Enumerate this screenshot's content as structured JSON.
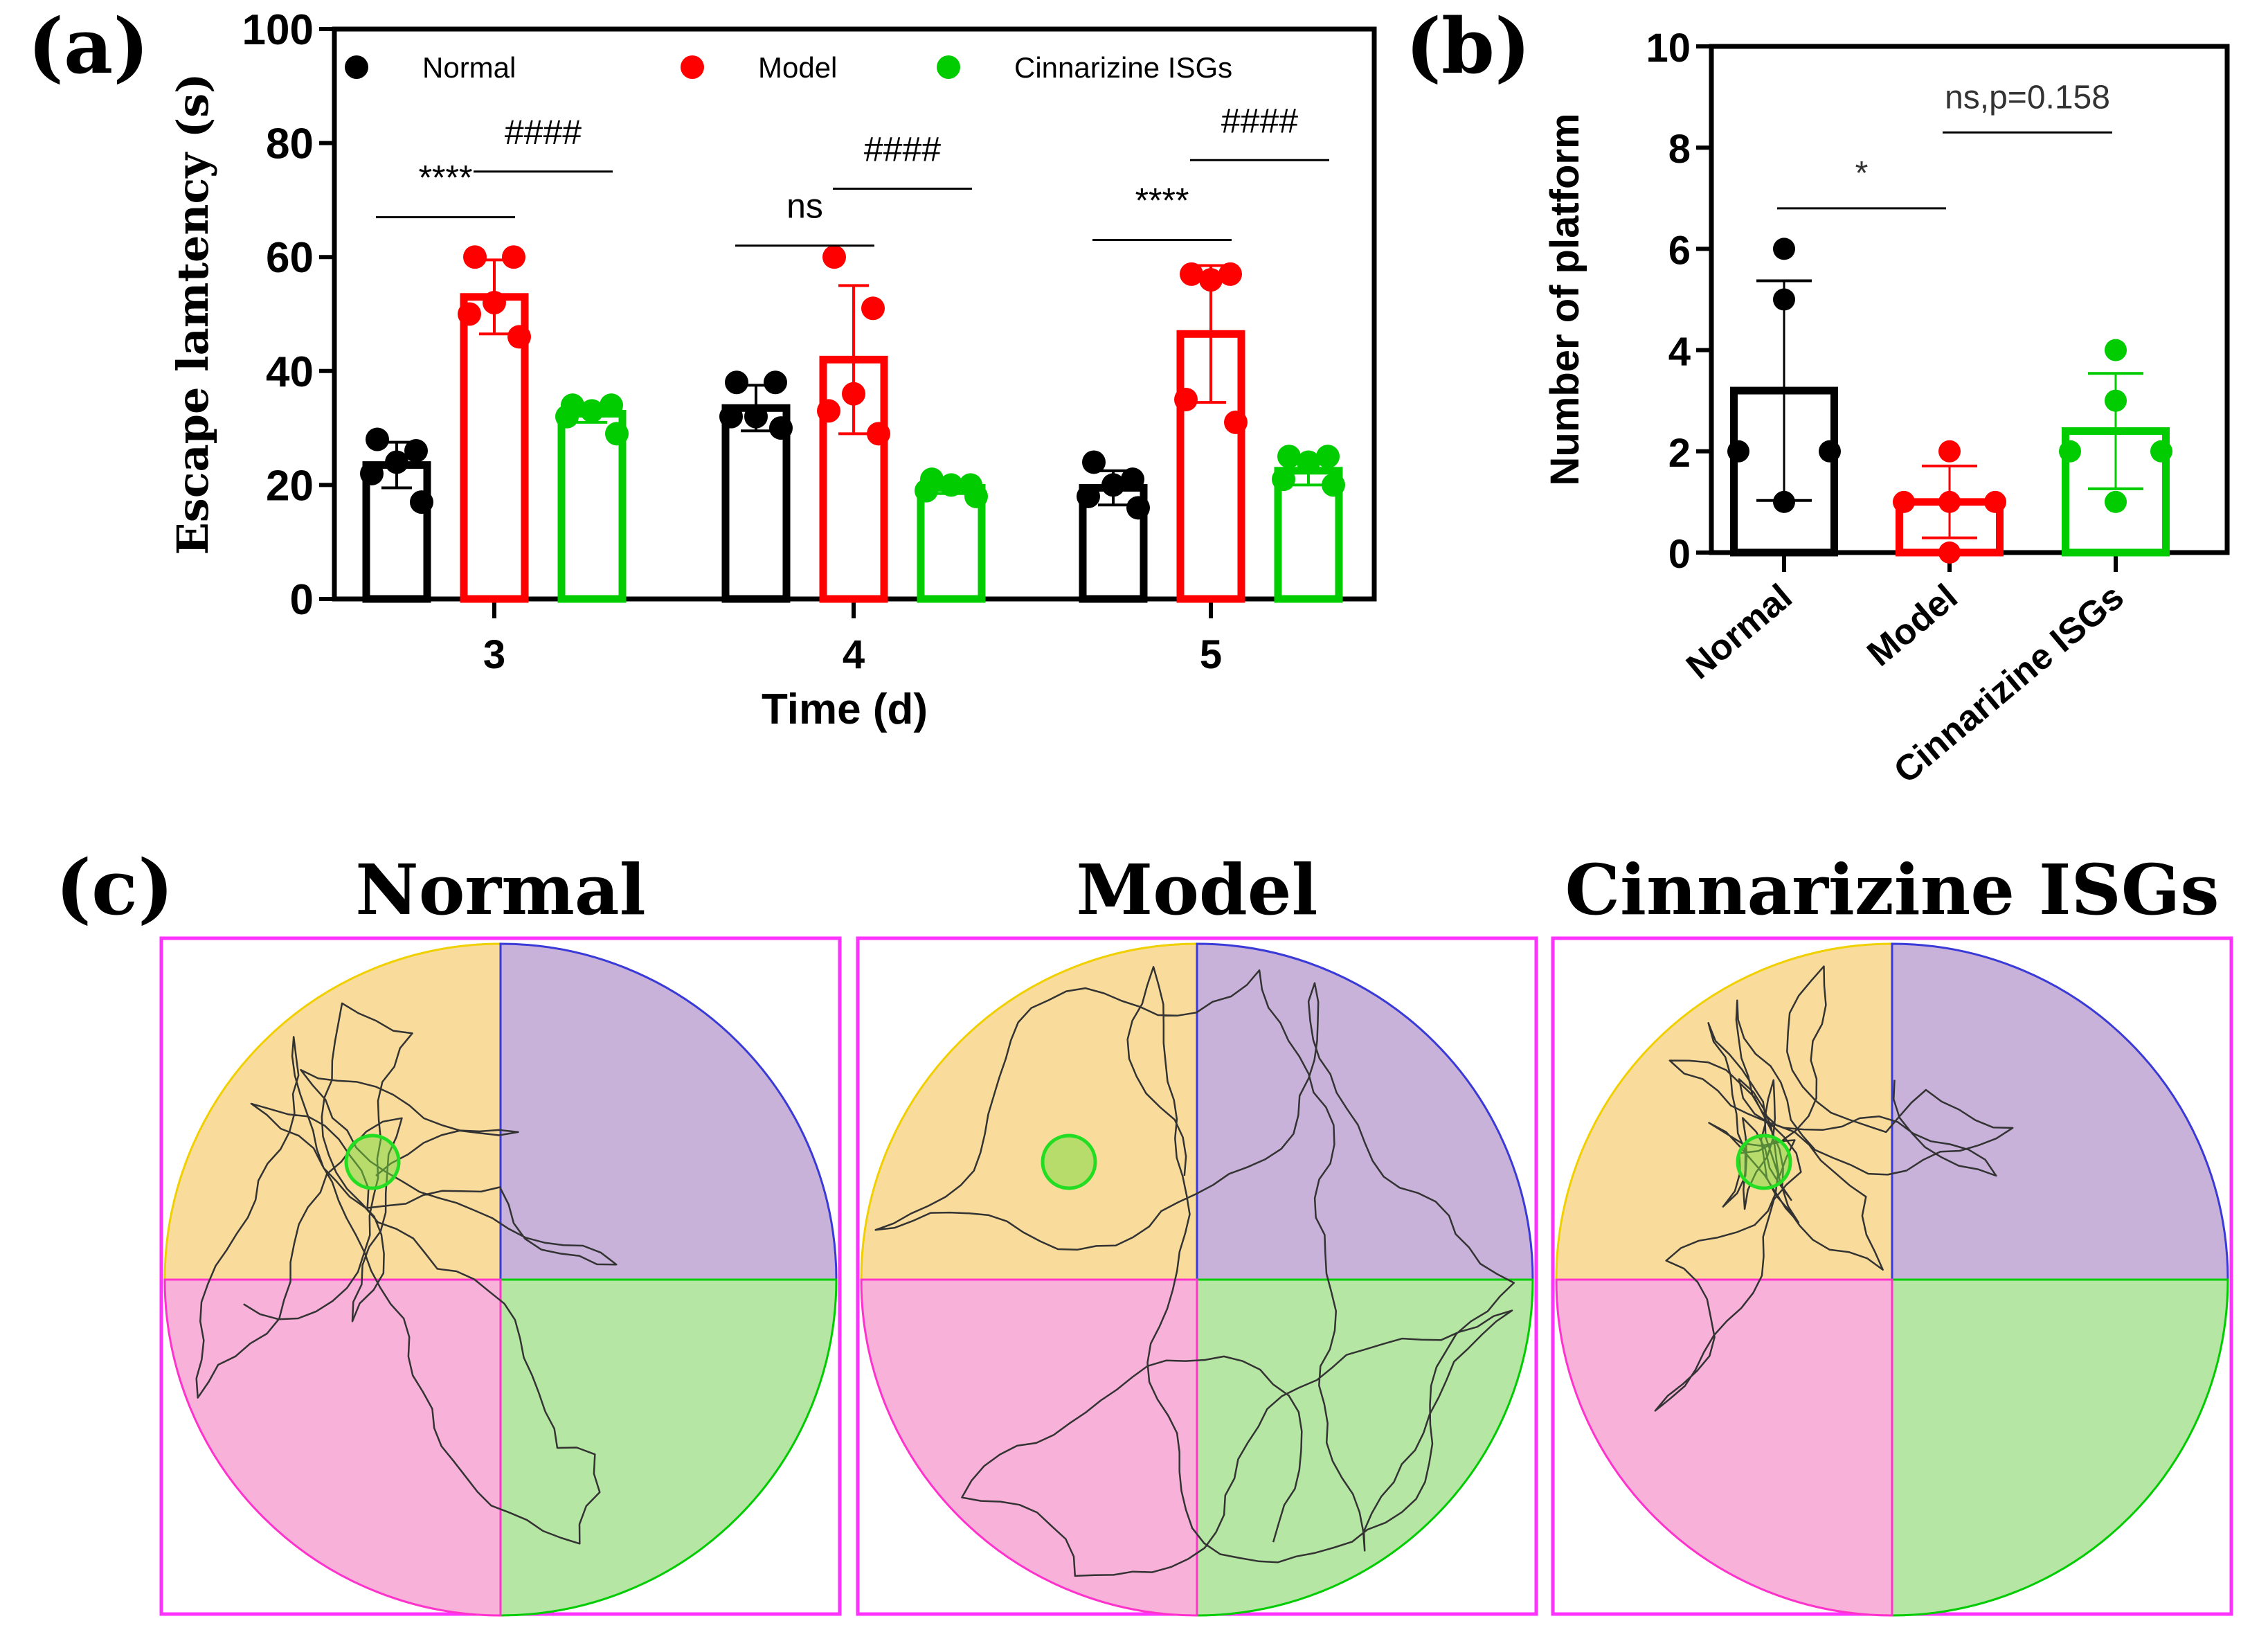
{
  "panel_labels": {
    "a": "(a)",
    "b": "(b)",
    "c": "(c)"
  },
  "chart_data": [
    {
      "type": "bar",
      "panel": "a",
      "xlabel": "Time (d)",
      "ylabel": "Escape lamtency (s)",
      "ylim": [
        0,
        100
      ],
      "yticks": [
        "0",
        "20",
        "40",
        "60",
        "80",
        "100"
      ],
      "categories": [
        "3",
        "4",
        "5"
      ],
      "legend_position": "top",
      "series": [
        {
          "name": "Normal",
          "color": "#000000",
          "values": [
            23.5,
            33.5,
            19.5
          ],
          "sd": [
            4,
            4,
            3
          ],
          "points": [
            [
              28,
              26,
              24,
              22,
              17
            ],
            [
              38,
              38,
              32,
              32,
              30
            ],
            [
              24,
              21,
              20,
              18,
              16
            ]
          ]
        },
        {
          "name": "Model",
          "color": "#ff0000",
          "values": [
            53,
            42,
            46.5
          ],
          "sd": [
            6.5,
            13,
            12
          ],
          "points": [
            [
              60,
              60,
              52,
              50,
              46
            ],
            [
              60,
              51,
              36,
              33,
              29
            ],
            [
              57,
              57,
              56,
              35,
              31
            ]
          ]
        },
        {
          "name": "Cinnarizine ISGs",
          "color": "#00cc00",
          "values": [
            32.5,
            19.5,
            22.5
          ],
          "sd": [
            1.5,
            1,
            2.5
          ],
          "points": [
            [
              34,
              34,
              33,
              32,
              29
            ],
            [
              21,
              20,
              20,
              19,
              18
            ],
            [
              25,
              25,
              24,
              21,
              20
            ]
          ]
        }
      ],
      "annotations": [
        {
          "text": "****",
          "category": 0,
          "from": 0,
          "to": 1,
          "y": 67
        },
        {
          "text": "####",
          "category": 0,
          "from": 1,
          "to": 2,
          "y": 75
        },
        {
          "text": "ns",
          "category": 1,
          "from": 0,
          "to": 1,
          "y": 62
        },
        {
          "text": "####",
          "category": 1,
          "from": 1,
          "to": 2,
          "y": 72
        },
        {
          "text": "****",
          "category": 2,
          "from": 0,
          "to": 1,
          "y": 63
        },
        {
          "text": "####",
          "category": 2,
          "from": 1,
          "to": 2,
          "y": 77
        }
      ]
    },
    {
      "type": "bar",
      "panel": "b",
      "xlabel": "",
      "ylabel": "Number of platform",
      "ylim": [
        0,
        10
      ],
      "yticks": [
        "0",
        "2",
        "4",
        "6",
        "8",
        "10"
      ],
      "categories": [
        "Normal",
        "Model",
        "Cinnarizine ISGs"
      ],
      "series": [
        {
          "name": "Number of platform",
          "colors": [
            "#000000",
            "#ff0000",
            "#00cc00"
          ],
          "values": [
            3.2,
            1.0,
            2.4
          ],
          "sd": [
            2.17,
            0.71,
            1.14
          ],
          "points": [
            [
              6,
              5,
              2,
              2,
              1
            ],
            [
              2,
              1,
              1,
              1,
              0
            ],
            [
              4,
              3,
              2,
              2,
              1
            ]
          ]
        }
      ],
      "annotations": [
        {
          "text": "*",
          "from": 0,
          "to": 1,
          "y": 6.8
        },
        {
          "text": "ns,p=0.158",
          "from": 1,
          "to": 2,
          "y": 8.3
        }
      ]
    }
  ],
  "panel_c": {
    "titles": [
      "Normal",
      "Model",
      "Cinnarizine ISGs"
    ],
    "quadrant_colors": {
      "top_left": "#f9dc9c",
      "top_right": "#c8b2da",
      "bottom_left": "#f8b1d9",
      "bottom_right": "#b6e6a3"
    },
    "frame_color": "#ff33ff",
    "platform_color": "#22dd22"
  }
}
